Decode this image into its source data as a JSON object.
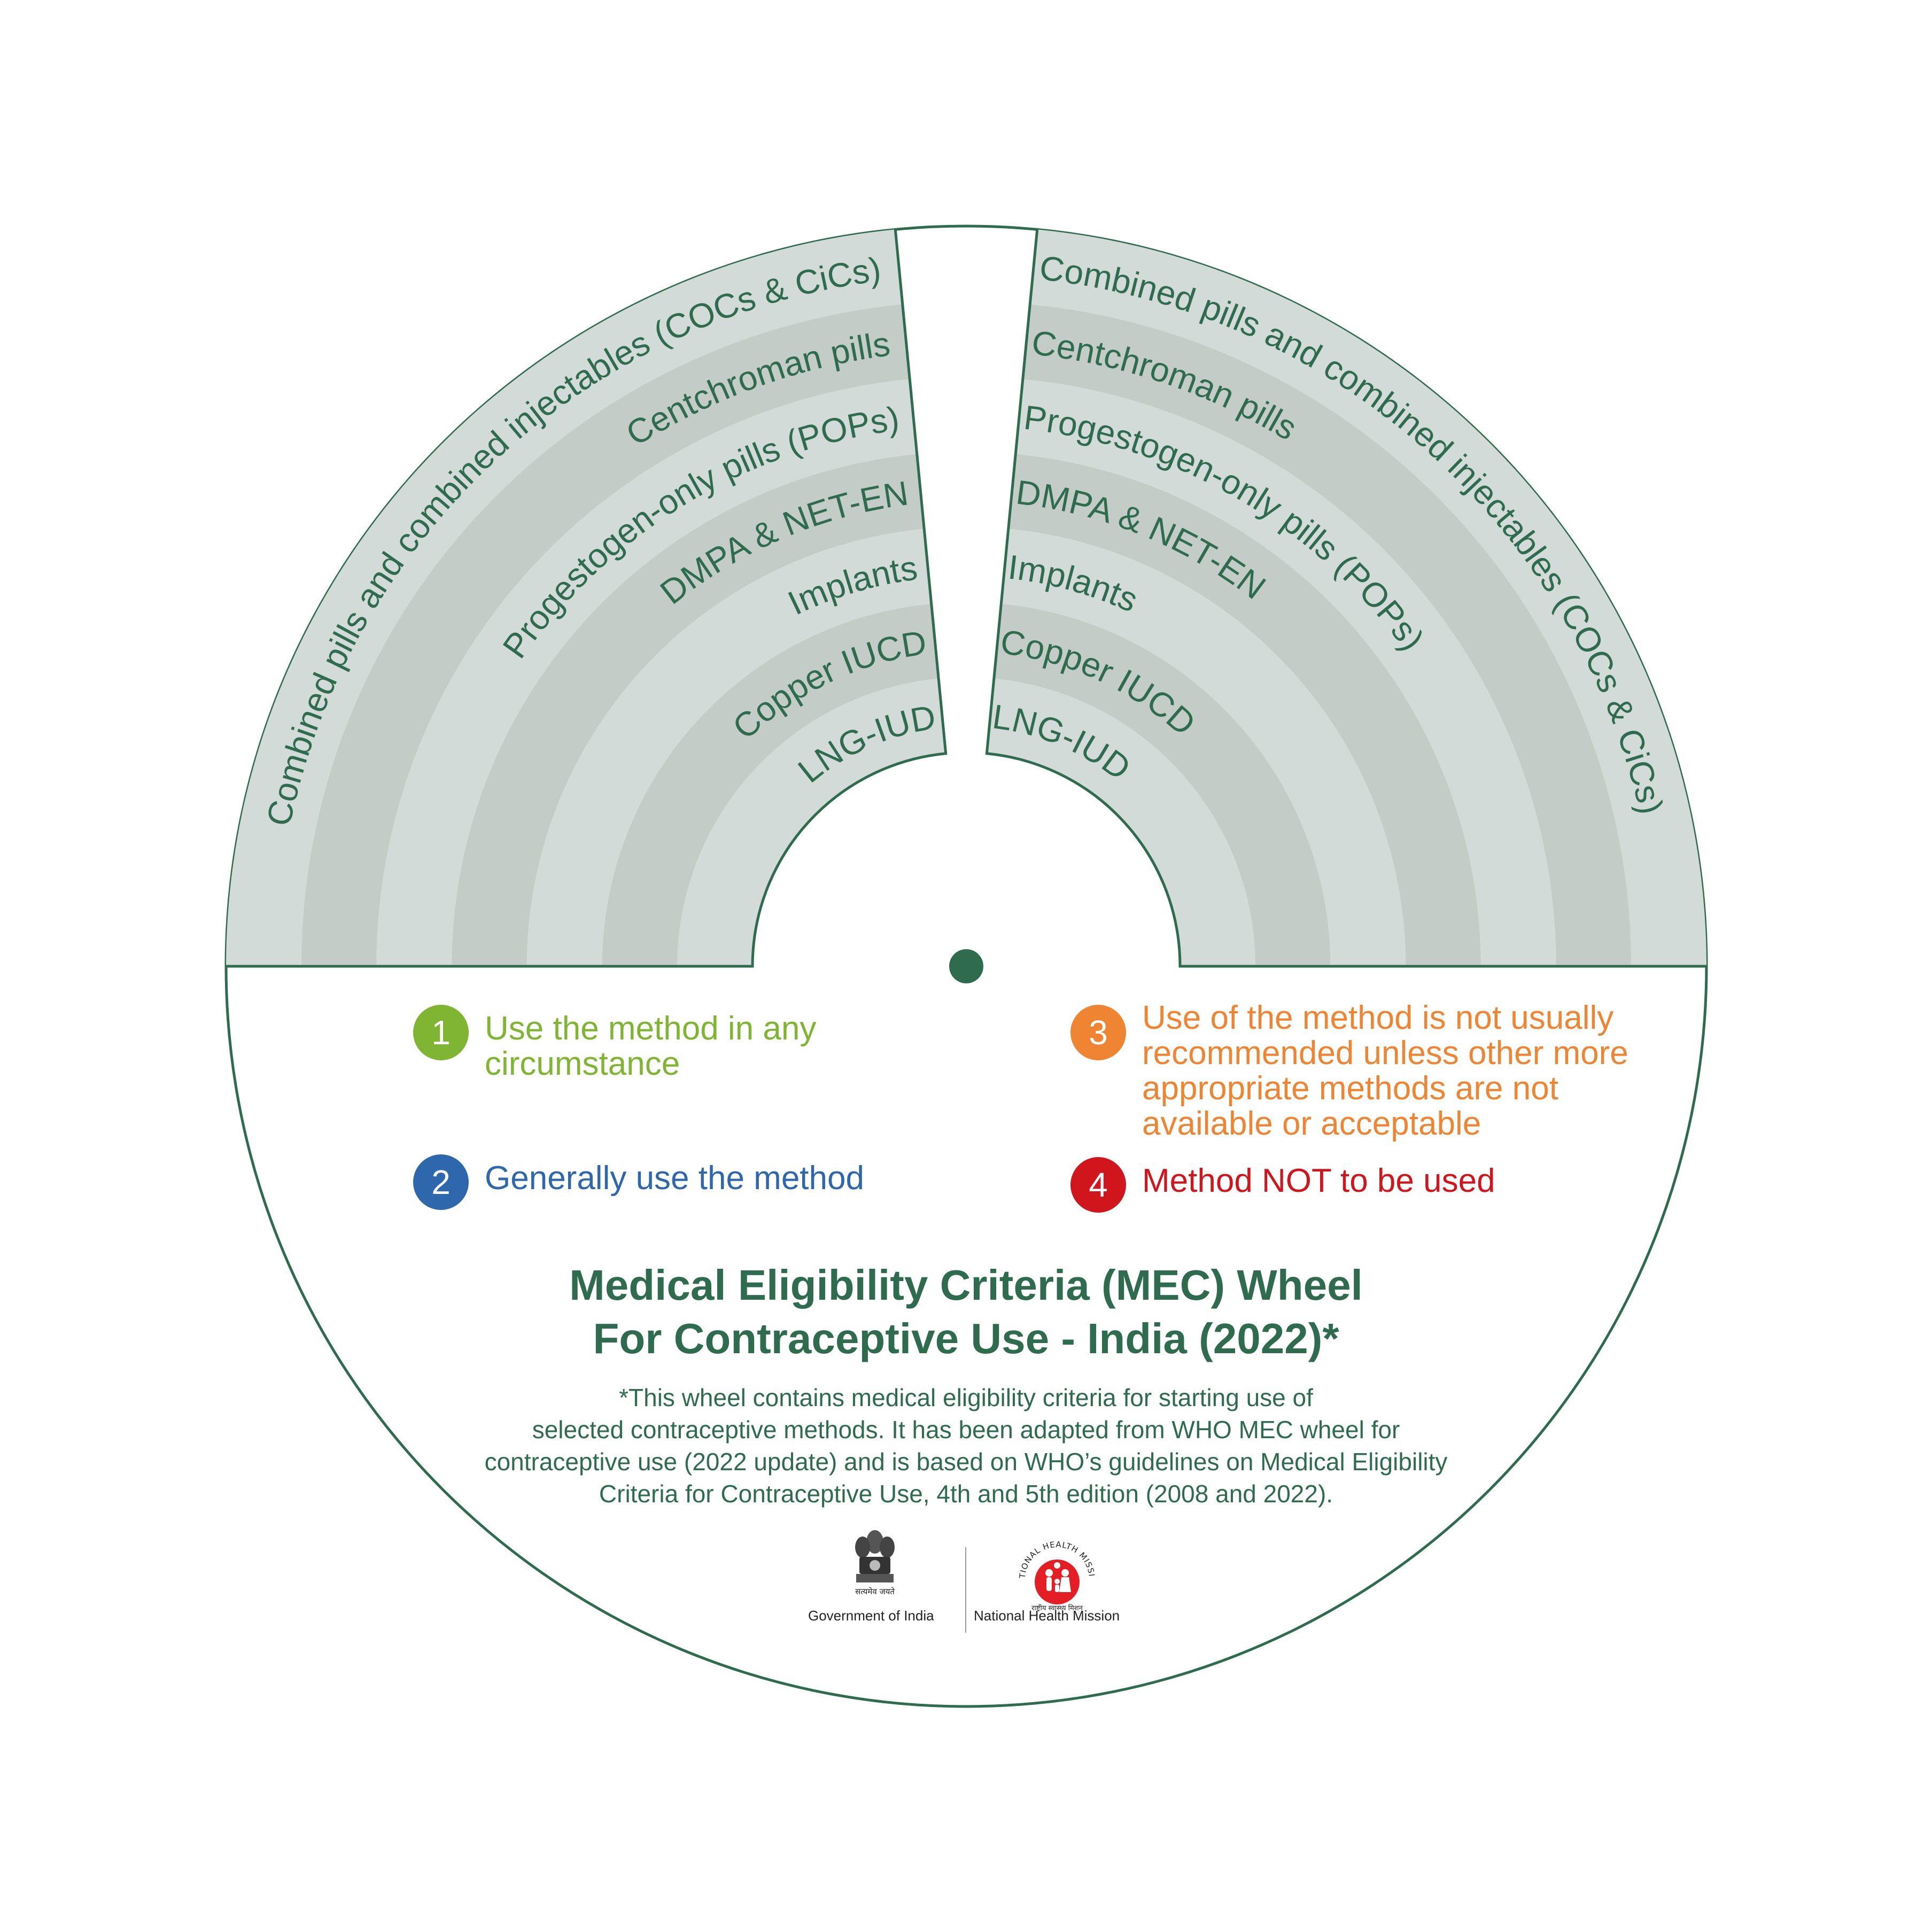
{
  "rings": [
    "Combined pills and combined injectables (COCs & CiCs)",
    "Centchroman pills",
    "Progestogen-only pills (POPs)",
    "DMPA & NET-EN",
    "Implants",
    "Copper IUCD",
    "LNG-IUD"
  ],
  "legend": [
    {
      "number": "1",
      "text": "Use the method in any circumstance",
      "color": "#7fb532"
    },
    {
      "number": "2",
      "text": "Generally use the method",
      "color": "#2f67ac"
    },
    {
      "number": "3",
      "text": "Use of the method is not usually recommended unless other more appropriate methods are not available or acceptable",
      "color": "#ef8532"
    },
    {
      "number": "4",
      "text": "Method NOT to be used",
      "color": "#d0161c"
    }
  ],
  "title": {
    "line1": "Medical Eligibility Criteria (MEC) Wheel",
    "line2": "For Contraceptive Use - India (2022)*"
  },
  "footnote": {
    "line1": "*This wheel contains medical eligibility criteria for starting use of",
    "line2": "selected contraceptive methods. It has been adapted from WHO MEC wheel for",
    "line3": "contraceptive use (2022 update) and is based on WHO’s guidelines on Medical Eligibility",
    "line4": "Criteria for Contraceptive Use, 4th and 5th edition (2008 and 2022)."
  },
  "logos": {
    "government": "Government of India",
    "nhm": "National Health Mission",
    "emblem_motto": "सत्यमेव जयते",
    "nhm_arc_text": "NATIONAL HEALTH MISSION",
    "nhm_hindi": "राष्ट्रीय स्वास्थ्य मिशन"
  },
  "colors": {
    "primary_green": "#2e6b4f",
    "band_light": "#d3dbd8",
    "band_dark": "#c4ccc7",
    "nhm_red": "#e31e24"
  }
}
